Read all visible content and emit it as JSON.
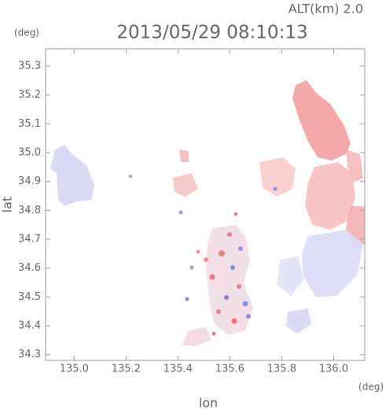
{
  "chart_data": {
    "type": "map",
    "title": "2013/05/29 08:10:13",
    "subtitle": "ALT(km) 2.0",
    "x_label": "lon",
    "y_label": "lat",
    "x_unit": "(deg)",
    "y_unit": "(deg)",
    "xlim": [
      134.89,
      136.12
    ],
    "ylim": [
      34.28,
      35.36
    ],
    "xticks": [
      {
        "value": 135,
        "label": "135.0"
      },
      135.2,
      135.4,
      135.6,
      135.8,
      {
        "value": 136,
        "label": "136.0"
      }
    ],
    "yticks": [
      34.3,
      34.4,
      34.5,
      34.6,
      34.7,
      34.8,
      34.9,
      {
        "value": 35,
        "label": "35.0"
      },
      35.1,
      35.2,
      35.3
    ]
  }
}
